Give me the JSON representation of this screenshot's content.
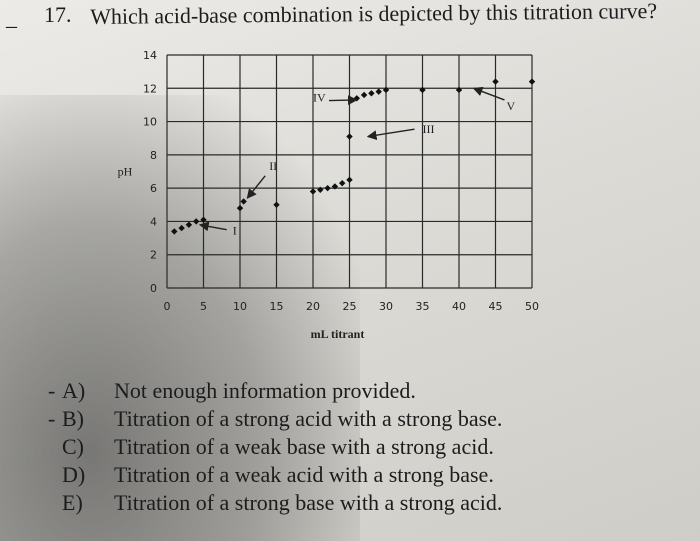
{
  "question": {
    "number": "17.",
    "text": "Which acid-base combination is depicted by this titration curve?",
    "left_mark": "_"
  },
  "chart_data": {
    "type": "scatter",
    "title": "",
    "xlabel": "mL titrant",
    "ylabel": "pH",
    "xlim": [
      0,
      50
    ],
    "ylim": [
      0,
      14
    ],
    "x_ticks": [
      "0",
      "5",
      "10",
      "15",
      "20",
      "25",
      "30",
      "35",
      "40",
      "45",
      "50"
    ],
    "y_ticks": [
      "0",
      "2",
      "4",
      "6",
      "8",
      "10",
      "12",
      "14"
    ],
    "grid": true,
    "series": [
      {
        "points": [
          [
            1,
            3.4
          ],
          [
            2,
            3.6
          ],
          [
            3,
            3.8
          ],
          [
            4,
            4.0
          ],
          [
            5,
            4.1
          ],
          [
            10,
            4.8
          ],
          [
            10.5,
            5.2
          ],
          [
            15,
            5.0
          ],
          [
            20,
            5.8
          ],
          [
            21,
            5.9
          ],
          [
            22,
            6.0
          ],
          [
            23,
            6.1
          ],
          [
            24,
            6.3
          ],
          [
            25,
            6.5
          ],
          [
            25,
            9.1
          ],
          [
            26,
            11.4
          ],
          [
            27,
            11.6
          ],
          [
            28,
            11.7
          ],
          [
            29,
            11.8
          ],
          [
            30,
            11.9
          ],
          [
            35,
            11.9
          ],
          [
            40,
            11.9
          ],
          [
            45,
            12.4
          ],
          [
            50,
            12.4
          ]
        ]
      }
    ],
    "annotations": [
      {
        "text": "I",
        "x": 9,
        "y": 3.2,
        "arrow_to": [
          4.5,
          3.8
        ]
      },
      {
        "text": "II",
        "x": 14,
        "y": 7.1,
        "arrow_to": [
          11,
          5.4
        ]
      },
      {
        "text": "III",
        "x": 35,
        "y": 9.3,
        "arrow_to": [
          27.5,
          9.1
        ]
      },
      {
        "text": "IV",
        "x": 20,
        "y": 11.2,
        "arrow_to": [
          26,
          11.3
        ]
      },
      {
        "text": "V",
        "x": 46.5,
        "y": 10.7,
        "arrow_to": [
          42,
          12.0
        ]
      }
    ]
  },
  "answers": [
    {
      "letter": "A)",
      "text": "Not enough information provided.",
      "mark": "-"
    },
    {
      "letter": "B)",
      "text": "Titration of a strong acid with a strong base.",
      "mark": "-"
    },
    {
      "letter": "C)",
      "text": "Titration of a weak base with a strong acid.",
      "mark": ""
    },
    {
      "letter": "D)",
      "text": "Titration of a weak acid with a strong base.",
      "mark": ""
    },
    {
      "letter": "E)",
      "text": "Titration of a strong base with a strong acid.",
      "mark": ""
    }
  ]
}
